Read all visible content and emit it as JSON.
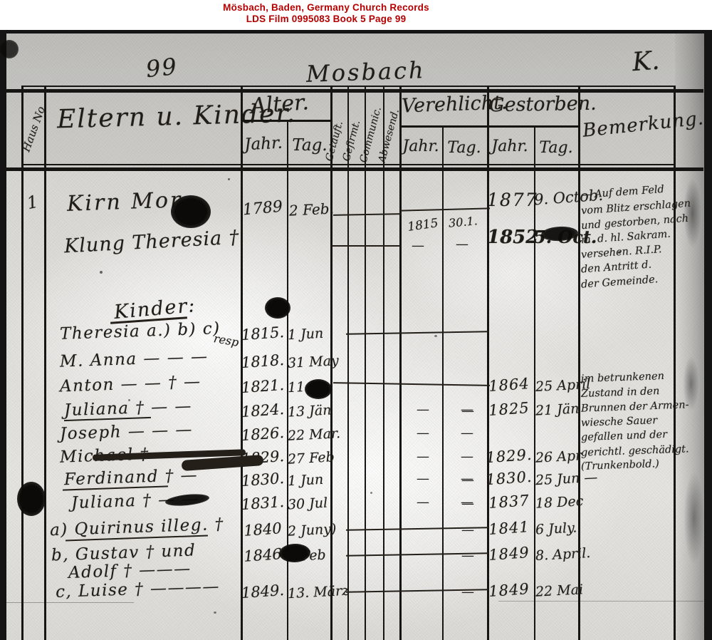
{
  "doc_header": {
    "line1": "Mösbach, Baden, Germany Church Records",
    "line2": "LDS Film 0995083 Book 5 Page 99",
    "color": "#b40000"
  },
  "page_marks": {
    "page_number": "99",
    "place_script": "Mosbach",
    "corner_letter": "K."
  },
  "columns": {
    "haus": "Haus No.",
    "eltern": "Eltern u. Kinder.",
    "alter": "Alter.",
    "jahr": "Jahr.",
    "tag": "Tag.",
    "narrow": [
      "Getauft.",
      "Gefirmt.",
      "Communic.",
      "Abwesend."
    ],
    "verehlicht": "Verehlicht.",
    "gestorben": "Gestorben.",
    "bemerkung": "Bemerkung."
  },
  "entry": {
    "haus_no": "1",
    "father": {
      "name": "Kirn Mor",
      "birth_jahr": "1789",
      "birth_tag": "2 Feb.",
      "died_jahr": "1877",
      "died_tag": "9. Octob."
    },
    "mother": {
      "name": "Klung Theresia †",
      "died_jahr": "1852",
      "died_tag": "5. Oct."
    },
    "marriage": {
      "jahr": "1815",
      "tag": "30.1.",
      "dashes": "—"
    },
    "parent_remark": [
      "— Auf dem Feld",
      "vom Blitz erschlagen",
      "und gestorben, nach",
      "m. d. hl. Sakram.",
      "versehen.  R.I.P.",
      "den Antritt d.",
      "der Gemeinde."
    ],
    "kinder_heading": "Kinder:",
    "children": [
      {
        "name": "Theresia a.)  b) c)",
        "tail": "resp",
        "birth_jahr": "1815.",
        "birth_tag": "1 Jun",
        "ver": "line"
      },
      {
        "name": "M. Anna  —  —  —",
        "birth_jahr": "1818.",
        "birth_tag": "31 May"
      },
      {
        "name": "Anton  —  — † —",
        "birth_jahr": "1821.",
        "birth_tag": "11 Ju",
        "died_jahr": "1864",
        "died_tag": "25 April",
        "ver": "wavy",
        "remark": [
          "im betrunkenen",
          "Zustand in den",
          "Brunnen der Armen-",
          "wiesche Sauer",
          "gefallen und der",
          "gerichtl. geschädigt.",
          "(Trunkenbold.)"
        ]
      },
      {
        "name": "Juliana  †  —  —",
        "underline": true,
        "birth_jahr": "1824.",
        "birth_tag": "13 Jän",
        "died_pre": "—",
        "died_jahr": "1825",
        "died_tag": "21 Jän",
        "ver": "dashes"
      },
      {
        "name": "Joseph  —  —  —",
        "birth_jahr": "1826.",
        "birth_tag": "22 Mar.",
        "ver": "dashes"
      },
      {
        "name": "Michael  †  —",
        "strike": true,
        "birth_jahr": "1829.",
        "birth_tag": "27 Feb",
        "died_jahr": "1829.",
        "died_tag": "26 Apr",
        "ver": "dashes"
      },
      {
        "name": "Ferdinand  †  —",
        "underline": true,
        "birth_jahr": "1830.",
        "birth_tag": "1 Jun",
        "died_pre": "—",
        "died_jahr": "1830.",
        "died_tag": "25 Jun —",
        "ver": "dashes"
      },
      {
        "name": "Juliana  †  —  —",
        "birth_jahr": "1831.",
        "birth_tag": "30 Jul",
        "died_pre": "—",
        "died_jahr": "1837",
        "died_tag": "18 Dec",
        "ver": "dashes"
      },
      {
        "name": "a) Quirinus illeg.  †",
        "underline": true,
        "birth_jahr": "1840",
        "birth_tag": "2 Juny)",
        "died_pre": "—",
        "died_jahr": "1841",
        "died_tag": "6 July.",
        "ver": "line"
      },
      {
        "name": "b, Gustav †  und",
        "birth_jahr": "1846",
        "birth_tag": "3 Feb",
        "died_pre": "—",
        "died_jahr": "1849",
        "died_tag": "8. April.",
        "ver": "line"
      },
      {
        "name": "Adolf †  ———"
      },
      {
        "name": "c, Luise  †  ————",
        "birth_jahr": "1849.",
        "birth_tag": "13. März",
        "died_pre": "—",
        "died_jahr": "1849",
        "died_tag": "22 Mai",
        "ver": "line"
      }
    ]
  }
}
